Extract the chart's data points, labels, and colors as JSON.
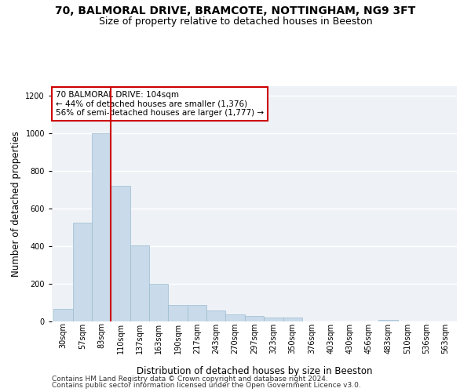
{
  "title1": "70, BALMORAL DRIVE, BRAMCOTE, NOTTINGHAM, NG9 3FT",
  "title2": "Size of property relative to detached houses in Beeston",
  "xlabel": "Distribution of detached houses by size in Beeston",
  "ylabel": "Number of detached properties",
  "footer1": "Contains HM Land Registry data © Crown copyright and database right 2024.",
  "footer2": "Contains public sector information licensed under the Open Government Licence v3.0.",
  "annotation_text": "70 BALMORAL DRIVE: 104sqm\n← 44% of detached houses are smaller (1,376)\n56% of semi-detached houses are larger (1,777) →",
  "bin_labels": [
    "30sqm",
    "57sqm",
    "83sqm",
    "110sqm",
    "137sqm",
    "163sqm",
    "190sqm",
    "217sqm",
    "243sqm",
    "270sqm",
    "297sqm",
    "323sqm",
    "350sqm",
    "376sqm",
    "403sqm",
    "430sqm",
    "456sqm",
    "483sqm",
    "510sqm",
    "536sqm",
    "563sqm"
  ],
  "bar_values": [
    65,
    525,
    1000,
    720,
    405,
    198,
    88,
    88,
    60,
    38,
    30,
    20,
    20,
    0,
    0,
    0,
    0,
    10,
    0,
    0,
    0
  ],
  "bar_color": "#c9daea",
  "bar_edge_color": "#9bbcce",
  "red_line_x": 3.0,
  "ylim": [
    0,
    1250
  ],
  "yticks": [
    0,
    200,
    400,
    600,
    800,
    1000,
    1200
  ],
  "background_color": "#eef2f7",
  "grid_color": "#ffffff",
  "annotation_box_facecolor": "#ffffff",
  "annotation_box_edgecolor": "#cc0000",
  "red_line_color": "#cc0000",
  "title1_fontsize": 10,
  "title2_fontsize": 9,
  "axis_label_fontsize": 8.5,
  "tick_fontsize": 7,
  "annotation_fontsize": 7.5,
  "footer_fontsize": 6.5
}
